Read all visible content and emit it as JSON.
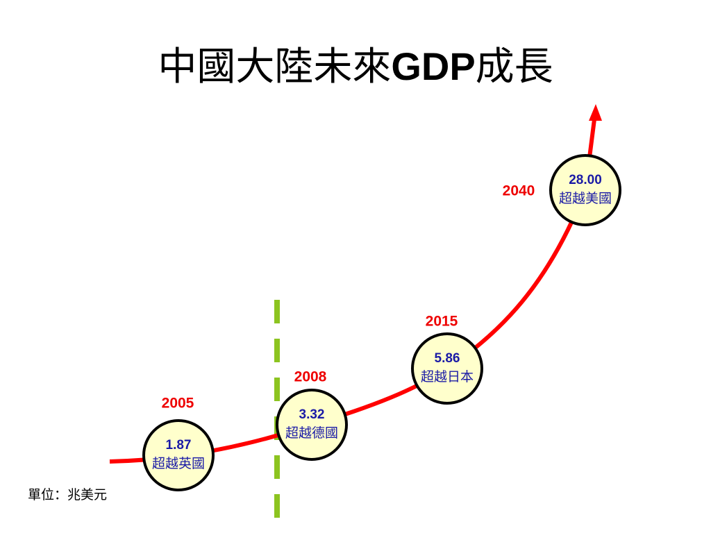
{
  "title": {
    "before": "中國大陸未來",
    "bold": "GDP",
    "after": "成長"
  },
  "nodes": [
    {
      "year": "2005",
      "value": "1.87",
      "label": "超越英國"
    },
    {
      "year": "2008",
      "value": "3.32",
      "label": "超越德國"
    },
    {
      "year": "2015",
      "value": "5.86",
      "label": "超越日本"
    },
    {
      "year": "2040",
      "value": "28.00",
      "label": "超越美國"
    }
  ],
  "unit_note": "單位：兆美元"
}
